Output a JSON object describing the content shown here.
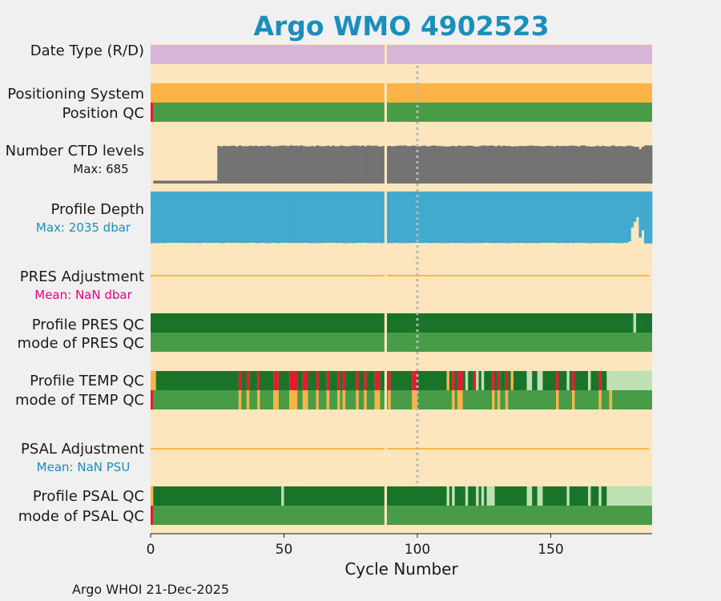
{
  "chart_data": {
    "type": "qc-timeline",
    "title": "Argo WMO 4902523",
    "xlabel": "Cycle Number",
    "xlim": [
      0,
      188
    ],
    "xticks": [
      0,
      50,
      100,
      150
    ],
    "xtick_labels": [
      "0",
      "50",
      "100",
      "150"
    ],
    "missing_cycle": 88,
    "rows": [
      {
        "id": "date-type",
        "label": "Date Type (R/D)",
        "sublabel": "",
        "kind": "category",
        "values": [
          "D"
        ],
        "palette": {
          "D": "#d8b4d8"
        }
      },
      {
        "id": "positioning-system",
        "label": "Positioning System",
        "sublabel": "",
        "kind": "category",
        "values": [
          "GPS"
        ],
        "palette": {
          "GPS": "#fbb444"
        }
      },
      {
        "id": "position-qc",
        "label": "Position QC",
        "sublabel": "",
        "kind": "qc",
        "default": "1",
        "exceptions": {
          "0": "4"
        }
      },
      {
        "id": "n-ctd-levels",
        "label": "Number CTD levels",
        "sublabel": "Max: 685",
        "kind": "bars",
        "color": "#737373",
        "max": 685,
        "segments": [
          {
            "from": 1,
            "to": 24,
            "value": 50
          },
          {
            "from": 25,
            "to": 180,
            "value": 665,
            "jitter": 20
          },
          {
            "from": 181,
            "to": 182,
            "value": 640
          },
          {
            "from": 183,
            "to": 183,
            "value": 600
          },
          {
            "from": 184,
            "to": 184,
            "value": 640
          },
          {
            "from": 185,
            "to": 188,
            "value": 665
          }
        ]
      },
      {
        "id": "profile-depth",
        "label": "Profile Depth",
        "sublabel": "Max: 2035 dbar",
        "kind": "bars",
        "color": "#42a9cf",
        "max": 2035,
        "segments": [
          {
            "from": 0,
            "to": 178,
            "value": 2020,
            "jitter": 20
          },
          {
            "from": 179,
            "to": 179,
            "value": 1950
          },
          {
            "from": 180,
            "to": 180,
            "value": 1400
          },
          {
            "from": 181,
            "to": 181,
            "value": 1180
          },
          {
            "from": 182,
            "to": 182,
            "value": 1000
          },
          {
            "from": 183,
            "to": 183,
            "value": 1800
          },
          {
            "from": 184,
            "to": 184,
            "value": 1520
          },
          {
            "from": 185,
            "to": 188,
            "value": 2030
          }
        ]
      },
      {
        "id": "pres-adjustment",
        "label": "PRES Adjustment",
        "sublabel": "Mean:  NaN dbar",
        "kind": "line"
      },
      {
        "id": "profile-pres-qc",
        "label": "Profile PRES QC",
        "sublabel": "",
        "kind": "qc",
        "default": "A",
        "exceptions": {
          "181": "B"
        }
      },
      {
        "id": "mode-pres-qc",
        "label": "mode of PRES QC",
        "sublabel": "",
        "kind": "qc",
        "default": "1",
        "exceptions": {}
      },
      {
        "id": "profile-temp-qc",
        "label": "Profile TEMP QC",
        "sublabel": "",
        "kind": "qc",
        "default": "A",
        "exceptions": {
          "0": "E",
          "1": "E",
          "33": "F",
          "36": "F",
          "40": "F",
          "46": "F",
          "47": "F",
          "52": "F",
          "53": "F",
          "54": "F",
          "57": "F",
          "58": "F",
          "62": "F",
          "66": "F",
          "70": "F",
          "72": "F",
          "77": "F",
          "80": "F",
          "84": "F",
          "85": "F",
          "89": "F",
          "98": "F",
          "99": "F",
          "111": "E",
          "113": "F",
          "115": "F",
          "116": "F",
          "118": "B",
          "121": "F",
          "122": "B",
          "124": "B",
          "128": "F",
          "130": "F",
          "133": "F",
          "135": "E",
          "141": "B",
          "142": "B",
          "145": "B",
          "146": "B",
          "152": "F",
          "156": "B",
          "158": "F",
          "164": "B",
          "168": "F",
          "171": "B",
          "172": "B",
          "173": "B",
          "174": "B",
          "175": "B",
          "176": "B",
          "177": "B",
          "178": "B",
          "179": "B",
          "180": "B",
          "181": "B",
          "182": "B",
          "183": "B",
          "184": "B",
          "185": "B",
          "186": "B",
          "187": "B"
        }
      },
      {
        "id": "mode-temp-qc",
        "label": "mode of TEMP QC",
        "sublabel": "",
        "kind": "qc",
        "default": "1",
        "exceptions": {
          "0": "4",
          "33": "3",
          "36": "3",
          "40": "3",
          "46": "3",
          "47": "3",
          "52": "3",
          "53": "3",
          "54": "3",
          "57": "3",
          "58": "3",
          "62": "3",
          "66": "3",
          "70": "3",
          "72": "3",
          "77": "3",
          "80": "3",
          "84": "3",
          "85": "3",
          "89": "3",
          "98": "3",
          "99": "3",
          "113": "3",
          "115": "3",
          "116": "3",
          "128": "3",
          "130": "3",
          "133": "3",
          "152": "3",
          "158": "3",
          "168": "3",
          "172": "3"
        }
      },
      {
        "id": "psal-adjustment",
        "label": "PSAL Adjustment",
        "sublabel": "Mean:  NaN PSU",
        "kind": "line"
      },
      {
        "id": "profile-psal-qc",
        "label": "Profile PSAL QC",
        "sublabel": "",
        "kind": "qc",
        "default": "A",
        "exceptions": {
          "0": "E",
          "49": "B",
          "111": "B",
          "113": "B",
          "118": "B",
          "122": "B",
          "124": "B",
          "126": "B",
          "127": "B",
          "128": "B",
          "141": "B",
          "142": "B",
          "145": "B",
          "146": "B",
          "156": "B",
          "164": "B",
          "168": "B",
          "171": "B",
          "172": "B",
          "173": "B",
          "174": "B",
          "175": "B",
          "176": "B",
          "177": "B",
          "178": "B",
          "179": "B",
          "180": "B",
          "181": "B",
          "182": "B",
          "183": "B",
          "184": "B",
          "185": "B",
          "186": "B",
          "187": "B"
        }
      },
      {
        "id": "mode-psal-qc",
        "label": "mode of PSAL QC",
        "sublabel": "",
        "kind": "qc",
        "default": "1",
        "exceptions": {
          "0": "4"
        }
      }
    ],
    "qc_palette": {
      "A": "#197429",
      "B": "#bde1b3",
      "E": "#fbb444",
      "F": "#e8182e",
      "1": "#489c48",
      "3": "#fbb444",
      "4": "#e8182e"
    }
  },
  "colors": {
    "panel_background": "#fde6bd",
    "figure_background": "#f0f0f0",
    "title": "#1b8fbb",
    "max_ctd": "#1a1a1a",
    "max_depth": "#1b8fbb",
    "pres_mean": "#e3008c",
    "psal_mean": "#1b8fbb",
    "adjustment_line": "#fbb444",
    "gap": "#fde6bd",
    "dotted": "#b8b8b8"
  },
  "footer": {
    "text": "Argo WHOI 21-Dec-2025"
  }
}
